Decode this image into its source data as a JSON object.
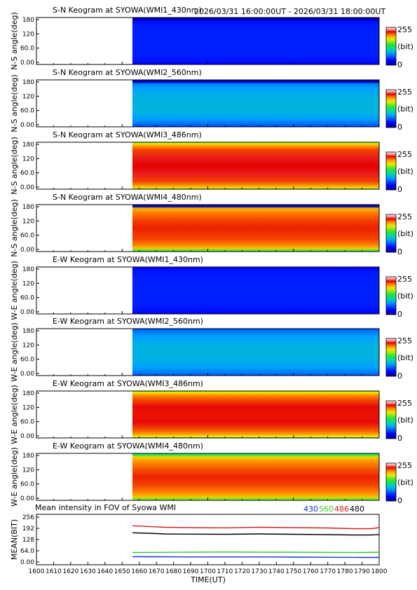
{
  "header": {
    "time_range": "2026/03/31 16:00:00UT - 2026/03/31 18:00:00UT"
  },
  "colorbar": {
    "max_label": "255",
    "min_label": "0",
    "unit_label": "(bit)"
  },
  "chart_data": [
    {
      "type": "heatmap",
      "title": "S-N Keogram at SYOWA(WMI1_430nm)",
      "ylabel": "N-S angle(deg)",
      "yticks": [
        "180",
        "120",
        "60.0",
        "0.00"
      ],
      "ylim": [
        0,
        180
      ],
      "xlim": [
        1600,
        1800
      ],
      "data_start": 1656,
      "colormap": "rainbow",
      "color_range": [
        0,
        255
      ],
      "profile_angles": [
        0,
        5,
        15,
        30,
        60,
        90,
        120,
        150,
        165,
        172,
        180
      ],
      "profile_values": [
        30,
        34,
        38,
        40,
        42,
        42,
        42,
        40,
        36,
        10,
        10
      ]
    },
    {
      "type": "heatmap",
      "title": "S-N Keogram at SYOWA(WMI2_560nm)",
      "ylabel": "N-S angle(deg)",
      "yticks": [
        "180",
        "120",
        "60.0",
        "0.00"
      ],
      "ylim": [
        0,
        180
      ],
      "xlim": [
        1600,
        1800
      ],
      "data_start": 1656,
      "colormap": "rainbow",
      "color_range": [
        0,
        255
      ],
      "profile_angles": [
        0,
        10,
        30,
        60,
        90,
        120,
        150,
        165,
        172,
        180
      ],
      "profile_values": [
        50,
        65,
        80,
        90,
        90,
        88,
        80,
        70,
        10,
        10
      ]
    },
    {
      "type": "heatmap",
      "title": "S-N Keogram at SYOWA(WMI3_486nm)",
      "ylabel": "N-S angle(deg)",
      "yticks": [
        "180",
        "120",
        "60.0",
        "0.00"
      ],
      "ylim": [
        0,
        180
      ],
      "xlim": [
        1600,
        1800
      ],
      "data_start": 1656,
      "colormap": "rainbow",
      "color_range": [
        0,
        255
      ],
      "profile_angles": [
        0,
        5,
        15,
        30,
        60,
        90,
        120,
        150,
        165,
        175,
        180
      ],
      "profile_values": [
        150,
        180,
        200,
        215,
        228,
        225,
        228,
        215,
        200,
        175,
        150
      ]
    },
    {
      "type": "heatmap",
      "title": "S-N Keogram at SYOWA(WMI4_480nm)",
      "ylabel": "N-S angle(deg)",
      "yticks": [
        "180",
        "120",
        "60.0",
        "0.00"
      ],
      "ylim": [
        0,
        180
      ],
      "xlim": [
        1600,
        1800
      ],
      "data_start": 1656,
      "colormap": "rainbow",
      "color_range": [
        0,
        255
      ],
      "profile_angles": [
        0,
        5,
        12,
        25,
        50,
        90,
        120,
        150,
        165,
        173,
        180
      ],
      "profile_values": [
        110,
        150,
        185,
        205,
        215,
        220,
        215,
        205,
        190,
        10,
        10
      ]
    },
    {
      "type": "heatmap",
      "title": "E-W Keogram at SYOWA(WMI1_430nm)",
      "ylabel": "W-E angle(deg)",
      "yticks": [
        "180",
        "120",
        "60.0",
        "0.00"
      ],
      "ylim": [
        0,
        180
      ],
      "xlim": [
        1600,
        1800
      ],
      "data_start": 1656,
      "colormap": "rainbow",
      "color_range": [
        0,
        255
      ],
      "profile_angles": [
        0,
        10,
        30,
        60,
        90,
        120,
        150,
        170,
        180
      ],
      "profile_values": [
        32,
        36,
        40,
        42,
        42,
        42,
        40,
        36,
        30
      ]
    },
    {
      "type": "heatmap",
      "title": "E-W Keogram at SYOWA(WMI2_560nm)",
      "ylabel": "W-E angle(deg)",
      "yticks": [
        "180",
        "120",
        "60.0",
        "0.00"
      ],
      "ylim": [
        0,
        180
      ],
      "xlim": [
        1600,
        1800
      ],
      "data_start": 1656,
      "colormap": "rainbow",
      "color_range": [
        0,
        255
      ],
      "profile_angles": [
        0,
        10,
        30,
        60,
        90,
        120,
        150,
        170,
        180
      ],
      "profile_values": [
        55,
        68,
        80,
        88,
        90,
        88,
        80,
        68,
        55
      ]
    },
    {
      "type": "heatmap",
      "title": "E-W Keogram at SYOWA(WMI3_486nm)",
      "ylabel": "W-E angle(deg)",
      "yticks": [
        "180",
        "120",
        "60.0",
        "0.00"
      ],
      "ylim": [
        0,
        180
      ],
      "xlim": [
        1600,
        1800
      ],
      "data_start": 1656,
      "colormap": "rainbow",
      "color_range": [
        0,
        255
      ],
      "profile_angles": [
        0,
        5,
        15,
        30,
        60,
        90,
        120,
        150,
        165,
        175,
        180
      ],
      "profile_values": [
        145,
        175,
        198,
        212,
        226,
        222,
        226,
        212,
        198,
        175,
        150
      ]
    },
    {
      "type": "heatmap",
      "title": "E-W Keogram at SYOWA(WMI4_480nm)",
      "ylabel": "W-E angle(deg)",
      "yticks": [
        "180",
        "120",
        "60.0",
        "0.00"
      ],
      "ylim": [
        0,
        180
      ],
      "xlim": [
        1600,
        1800
      ],
      "data_start": 1656,
      "colormap": "rainbow",
      "color_range": [
        0,
        255
      ],
      "profile_angles": [
        0,
        5,
        15,
        30,
        60,
        90,
        120,
        150,
        165,
        175,
        180
      ],
      "profile_values": [
        120,
        160,
        188,
        205,
        215,
        220,
        212,
        200,
        182,
        130,
        110
      ]
    },
    {
      "type": "line",
      "title": "Mean intensity in FOV of Syowa WMI",
      "ylabel": "MEAN(BIT)",
      "xlabel": "TIME(UT)",
      "ylim": [
        0,
        256
      ],
      "xlim": [
        1600,
        1800
      ],
      "yticks": [
        "256",
        "192",
        "128",
        "64.0",
        "0.00"
      ],
      "ytick_values": [
        256,
        192,
        128,
        64,
        0
      ],
      "xticks": [
        "1600",
        "1610",
        "1620",
        "1630",
        "1640",
        "1650",
        "1660",
        "1670",
        "1680",
        "1690",
        "1700",
        "1710",
        "1720",
        "1730",
        "1740",
        "1750",
        "1760",
        "1770",
        "1780",
        "1790",
        "1800"
      ],
      "xtick_values": [
        1600,
        1610,
        1620,
        1630,
        1640,
        1650,
        1660,
        1670,
        1680,
        1690,
        1700,
        1710,
        1720,
        1730,
        1740,
        1750,
        1760,
        1770,
        1780,
        1790,
        1800
      ],
      "legend": [
        "430",
        "560",
        "486",
        "480"
      ],
      "series": [
        {
          "name": "430",
          "color": "#1a2fd6",
          "x": [
            1656,
            1670,
            1690,
            1710,
            1730,
            1750,
            1770,
            1790,
            1800
          ],
          "values": [
            30,
            30,
            29,
            29,
            29,
            28,
            27,
            26,
            26
          ]
        },
        {
          "name": "560",
          "color": "#2ecc2e",
          "x": [
            1656,
            1670,
            1690,
            1710,
            1730,
            1750,
            1770,
            1790,
            1800
          ],
          "values": [
            54,
            55,
            56,
            57,
            56,
            56,
            55,
            54,
            56
          ]
        },
        {
          "name": "486",
          "color": "#d21e1e",
          "x": [
            1656,
            1665,
            1675,
            1690,
            1710,
            1730,
            1750,
            1770,
            1785,
            1795,
            1800
          ],
          "values": [
            207,
            203,
            198,
            196,
            195,
            198,
            196,
            194,
            190,
            190,
            196
          ]
        },
        {
          "name": "480",
          "color": "#000000",
          "x": [
            1656,
            1665,
            1675,
            1690,
            1710,
            1730,
            1750,
            1770,
            1785,
            1795,
            1800
          ],
          "values": [
            167,
            164,
            160,
            159,
            158,
            160,
            158,
            156,
            154,
            154,
            157
          ]
        }
      ]
    }
  ]
}
